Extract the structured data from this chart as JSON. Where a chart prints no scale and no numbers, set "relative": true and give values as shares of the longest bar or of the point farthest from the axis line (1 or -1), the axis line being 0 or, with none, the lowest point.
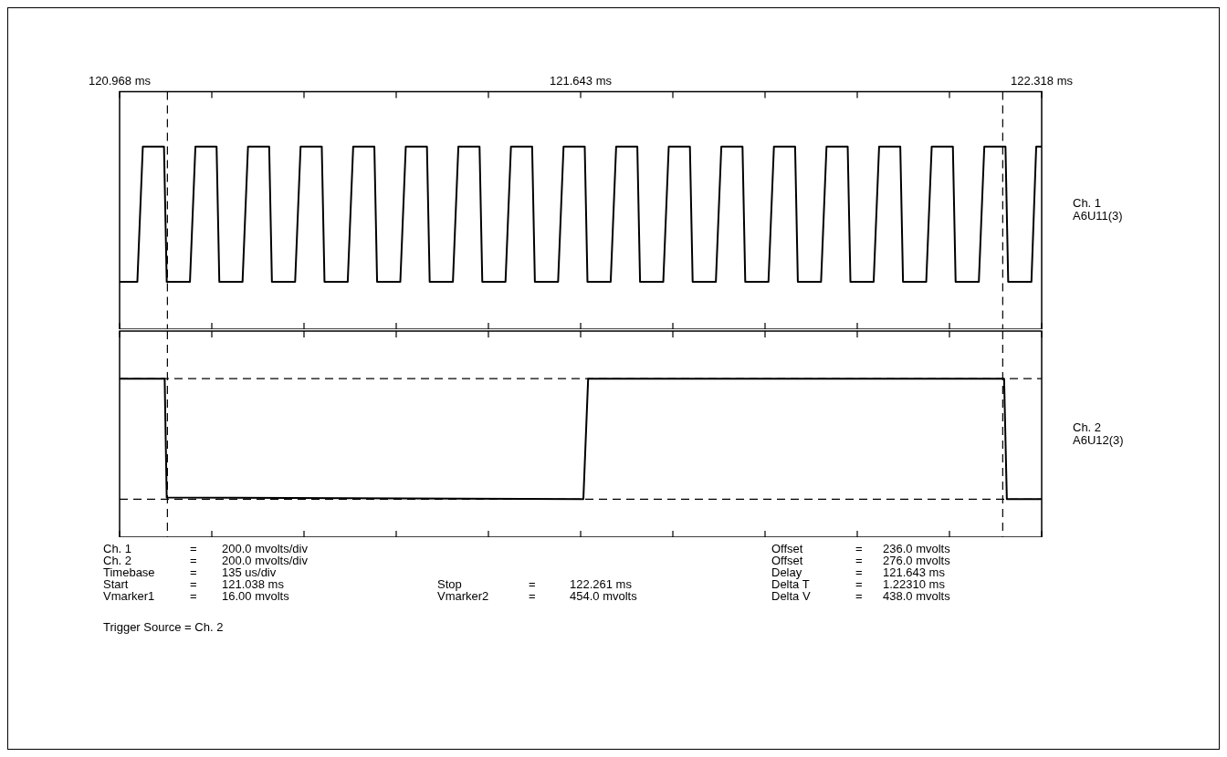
{
  "chart_data": [
    {
      "type": "line",
      "x": [
        120.968,
        120.994,
        121.002,
        121.033,
        121.037,
        121.071,
        121.079,
        121.11,
        121.114,
        121.148,
        121.156,
        121.187,
        121.191,
        121.225,
        121.233,
        121.264,
        121.268,
        121.302,
        121.31,
        121.341,
        121.345,
        121.379,
        121.387,
        121.418,
        121.422,
        121.456,
        121.464,
        121.495,
        121.499,
        121.533,
        121.541,
        121.572,
        121.576,
        121.61,
        121.618,
        121.649,
        121.653,
        121.687,
        121.695,
        121.726,
        121.73,
        121.764,
        121.772,
        121.803,
        121.807,
        121.841,
        121.849,
        121.88,
        121.884,
        121.918,
        121.926,
        121.957,
        121.961,
        121.995,
        122.003,
        122.034,
        122.038,
        122.072,
        122.08,
        122.111,
        122.115,
        122.149,
        122.157,
        122.188,
        122.192,
        122.226,
        122.234,
        122.265,
        122.269,
        122.303,
        122.31,
        122.318
      ],
      "series": [
        {
          "name": "Ch. 1 A6U11(3)",
          "color": "#000000",
          "values": [
            0.26,
            0.26,
            1,
            1,
            0.26,
            0.26,
            1,
            1,
            0.26,
            0.26,
            1,
            1,
            0.26,
            0.26,
            1,
            1,
            0.26,
            0.26,
            1,
            1,
            0.26,
            0.26,
            1,
            1,
            0.26,
            0.26,
            1,
            1,
            0.26,
            0.26,
            1,
            1,
            0.26,
            0.26,
            1,
            1,
            0.26,
            0.26,
            1,
            1,
            0.26,
            0.26,
            1,
            1,
            0.26,
            0.26,
            1,
            1,
            0.26,
            0.26,
            1,
            1,
            0.26,
            0.26,
            1,
            1,
            0.26,
            0.26,
            1,
            1,
            0.26,
            0.26,
            1,
            1,
            0.26,
            0.26,
            1,
            1,
            0.26,
            0.26,
            1,
            1
          ]
        }
      ],
      "xlim": [
        120.968,
        122.318
      ],
      "xticks": [
        {
          "value": 120.968,
          "label": "120.968 ms"
        },
        {
          "value": 121.103,
          "label": null
        },
        {
          "value": 121.238,
          "label": null
        },
        {
          "value": 121.373,
          "label": null
        },
        {
          "value": 121.508,
          "label": null
        },
        {
          "value": 121.643,
          "label": "121.643 ms"
        },
        {
          "value": 121.778,
          "label": null
        },
        {
          "value": 121.913,
          "label": null
        },
        {
          "value": 122.048,
          "label": null
        },
        {
          "value": 122.183,
          "label": null
        },
        {
          "value": 122.318,
          "label": "122.318 ms"
        }
      ],
      "relative": true,
      "tick_labels": "x",
      "grid": false,
      "legend": false,
      "marker": "none",
      "line_style": "solid",
      "ref_lines": [
        {
          "axis": "x",
          "value": 121.038,
          "line_style": "dashed"
        },
        {
          "axis": "x",
          "value": 122.261,
          "line_style": "dashed"
        }
      ]
    },
    {
      "type": "line",
      "x": [
        120.968,
        121.034,
        121.037,
        121.647,
        121.654,
        122.263,
        122.267,
        122.318
      ],
      "series": [
        {
          "name": "Ch. 2 A6U12(3)",
          "color": "#000000",
          "values": [
            1,
            1,
            0.25,
            0.24,
            1,
            1,
            0.24,
            0.24
          ]
        }
      ],
      "xlim": [
        120.968,
        122.318
      ],
      "xticks": [
        {
          "value": 120.968,
          "label": null
        },
        {
          "value": 121.103,
          "label": null
        },
        {
          "value": 121.238,
          "label": null
        },
        {
          "value": 121.373,
          "label": null
        },
        {
          "value": 121.508,
          "label": null
        },
        {
          "value": 121.643,
          "label": null
        },
        {
          "value": 121.778,
          "label": null
        },
        {
          "value": 121.913,
          "label": null
        },
        {
          "value": 122.048,
          "label": null
        },
        {
          "value": 122.183,
          "label": null
        },
        {
          "value": 122.318,
          "label": null
        }
      ],
      "relative": true,
      "tick_labels": false,
      "grid": false,
      "legend": false,
      "marker": "none",
      "line_style": "solid",
      "ref_lines": [
        {
          "axis": "x",
          "value": 121.038,
          "line_style": "dashed"
        },
        {
          "axis": "x",
          "value": 122.261,
          "line_style": "dashed"
        },
        {
          "axis": "y",
          "value": 0.24,
          "line_style": "dashed"
        },
        {
          "axis": "y",
          "value": 1,
          "line_style": "dashed"
        }
      ],
      "annotations": [
        "Ch. 1 = 200.0 mvolts/div",
        "Ch. 2 = 200.0 mvolts/div",
        "Timebase = 135 us/div",
        "Start = 121.038 ms",
        "Vmarker1 = 16.00 mvolts",
        "Stop = 122.261 ms",
        "Vmarker2 = 454.0 mvolts",
        "Offset = 236.0 mvolts",
        "Offset = 276.0 mvolts",
        "Delay = 121.643 ms",
        "Delta T = 1.22310 ms",
        "Delta V = 438.0 mvolts",
        "Trigger Source = Ch. 2"
      ]
    }
  ]
}
